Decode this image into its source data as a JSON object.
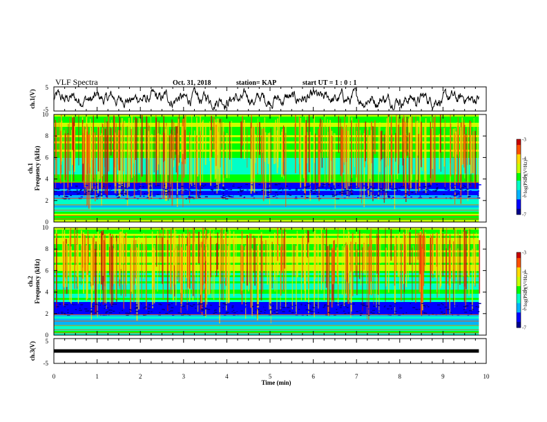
{
  "header": {
    "title": "VLF Spectra",
    "date": "Oct. 31, 2018",
    "station": "station= KAP",
    "start": "start UT =  1 : 0  : 1"
  },
  "chart_data": [
    {
      "type": "line",
      "name": "ch1-waveform",
      "ylabel": "ch.1(V)",
      "ylim": [
        -5,
        5
      ],
      "yticks": [
        "5",
        "-5"
      ],
      "xlim": [
        0,
        10
      ]
    },
    {
      "type": "heatmap",
      "name": "ch1-spectrogram",
      "ylabel": "ch.1\nFrequency (kHz)",
      "ylim": [
        0,
        10
      ],
      "yticks": [
        "0",
        "2",
        "4",
        "6",
        "8",
        "10"
      ],
      "xlim": [
        0,
        10
      ],
      "colorbar": {
        "label": "log(PSD)(V²/Hz)",
        "range": [
          -7,
          -3
        ],
        "ticks": [
          "-3",
          "-4",
          "-5",
          "-6",
          "-7"
        ]
      }
    },
    {
      "type": "heatmap",
      "name": "ch2-spectrogram",
      "ylabel": "ch.2\nFrequency (kHz)",
      "ylim": [
        0,
        10
      ],
      "yticks": [
        "0",
        "2",
        "4",
        "6",
        "8",
        "10"
      ],
      "xlim": [
        0,
        10
      ],
      "colorbar": {
        "label": "log(PSD)(V²/Hz)",
        "range": [
          -7,
          -3
        ],
        "ticks": [
          "-3",
          "-4",
          "-5",
          "-6",
          "-7"
        ]
      }
    },
    {
      "type": "line",
      "name": "ch3-waveform",
      "ylabel": "ch.3(V)",
      "ylim": [
        -5,
        5
      ],
      "yticks": [
        "5",
        "-5"
      ],
      "level": 0,
      "xlim": [
        0,
        10
      ]
    }
  ],
  "xaxis": {
    "label": "Time (min)",
    "ticks": [
      "0",
      "1",
      "2",
      "3",
      "4",
      "5",
      "6",
      "7",
      "8",
      "9",
      "10"
    ],
    "data_end": 9.83
  },
  "colors": {
    "scale": [
      "#00008c",
      "#0000ff",
      "#00b4ff",
      "#00ffc8",
      "#00ff00",
      "#c8ff00",
      "#ffdc00",
      "#ff5000",
      "#c80000"
    ]
  }
}
